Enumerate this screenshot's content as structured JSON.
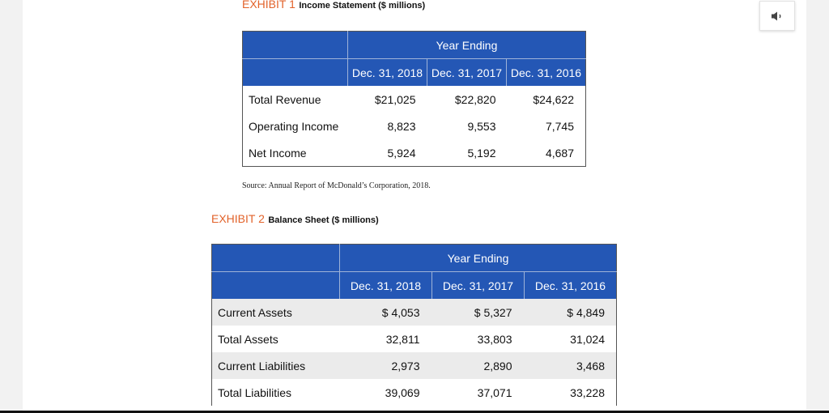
{
  "exhibit1": {
    "label": "EXHIBIT 1",
    "title": "Income Statement ($ millions)",
    "header_group": "Year Ending",
    "years": [
      "Dec. 31, 2018",
      "Dec. 31, 2017",
      "Dec. 31, 2016"
    ],
    "rows": [
      {
        "name": "Total Revenue",
        "values": [
          "$21,025",
          "$22,820",
          "$24,622"
        ]
      },
      {
        "name": "Operating Income",
        "values": [
          "8,823",
          "9,553",
          "7,745"
        ]
      },
      {
        "name": "Net Income",
        "values": [
          "5,924",
          "5,192",
          "4,687"
        ]
      }
    ],
    "source": "Source: Annual Report of McDonald’s Corporation, 2018."
  },
  "exhibit2": {
    "label": "EXHIBIT 2",
    "title": "Balance Sheet ($ millions)",
    "header_group": "Year Ending",
    "years": [
      "Dec. 31, 2018",
      "Dec. 31, 2017",
      "Dec. 31, 2016"
    ],
    "rows": [
      {
        "name": "Current Assets",
        "values": [
          "$ 4,053",
          "$ 5,327",
          "$ 4,849"
        ]
      },
      {
        "name": "Total Assets",
        "values": [
          "32,811",
          "33,803",
          "31,024"
        ]
      },
      {
        "name": "Current Liabilities",
        "values": [
          "2,973",
          "2,890",
          "3,468"
        ]
      },
      {
        "name": "Total Liabilities",
        "values": [
          "39,069",
          "37,071",
          "33,228"
        ]
      }
    ]
  },
  "icons": {
    "audio": "speaker-icon"
  }
}
